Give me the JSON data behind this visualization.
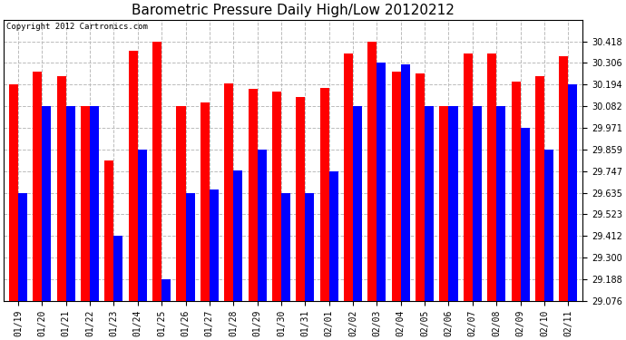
{
  "title": "Barometric Pressure Daily High/Low 20120212",
  "copyright": "Copyright 2012 Cartronics.com",
  "categories": [
    "01/19",
    "01/20",
    "01/21",
    "01/22",
    "01/23",
    "01/24",
    "01/25",
    "01/26",
    "01/27",
    "01/28",
    "01/29",
    "01/30",
    "01/31",
    "02/01",
    "02/02",
    "02/03",
    "02/04",
    "02/05",
    "02/06",
    "02/07",
    "02/08",
    "02/09",
    "02/10",
    "02/11"
  ],
  "high": [
    30.194,
    30.26,
    30.24,
    30.082,
    29.8,
    30.37,
    30.418,
    30.082,
    30.1,
    30.2,
    30.17,
    30.16,
    30.13,
    30.175,
    30.355,
    30.418,
    30.26,
    30.25,
    30.082,
    30.355,
    30.355,
    30.21,
    30.24,
    30.34
  ],
  "low": [
    29.635,
    30.082,
    30.082,
    30.082,
    29.412,
    29.859,
    29.188,
    29.635,
    29.65,
    29.75,
    29.859,
    29.635,
    29.635,
    29.747,
    30.082,
    30.306,
    30.3,
    30.082,
    30.082,
    30.082,
    30.082,
    29.971,
    29.859,
    30.194
  ],
  "high_color": "#FF0000",
  "low_color": "#0000FF",
  "bg_color": "#FFFFFF",
  "grid_color": "#BBBBBB",
  "ylim_min": 29.076,
  "ylim_max": 30.53,
  "yticks": [
    29.076,
    29.188,
    29.3,
    29.412,
    29.523,
    29.635,
    29.747,
    29.859,
    29.971,
    30.082,
    30.194,
    30.306,
    30.418
  ],
  "title_fontsize": 11,
  "tick_fontsize": 7,
  "copyright_fontsize": 6.5,
  "bar_width": 0.38
}
